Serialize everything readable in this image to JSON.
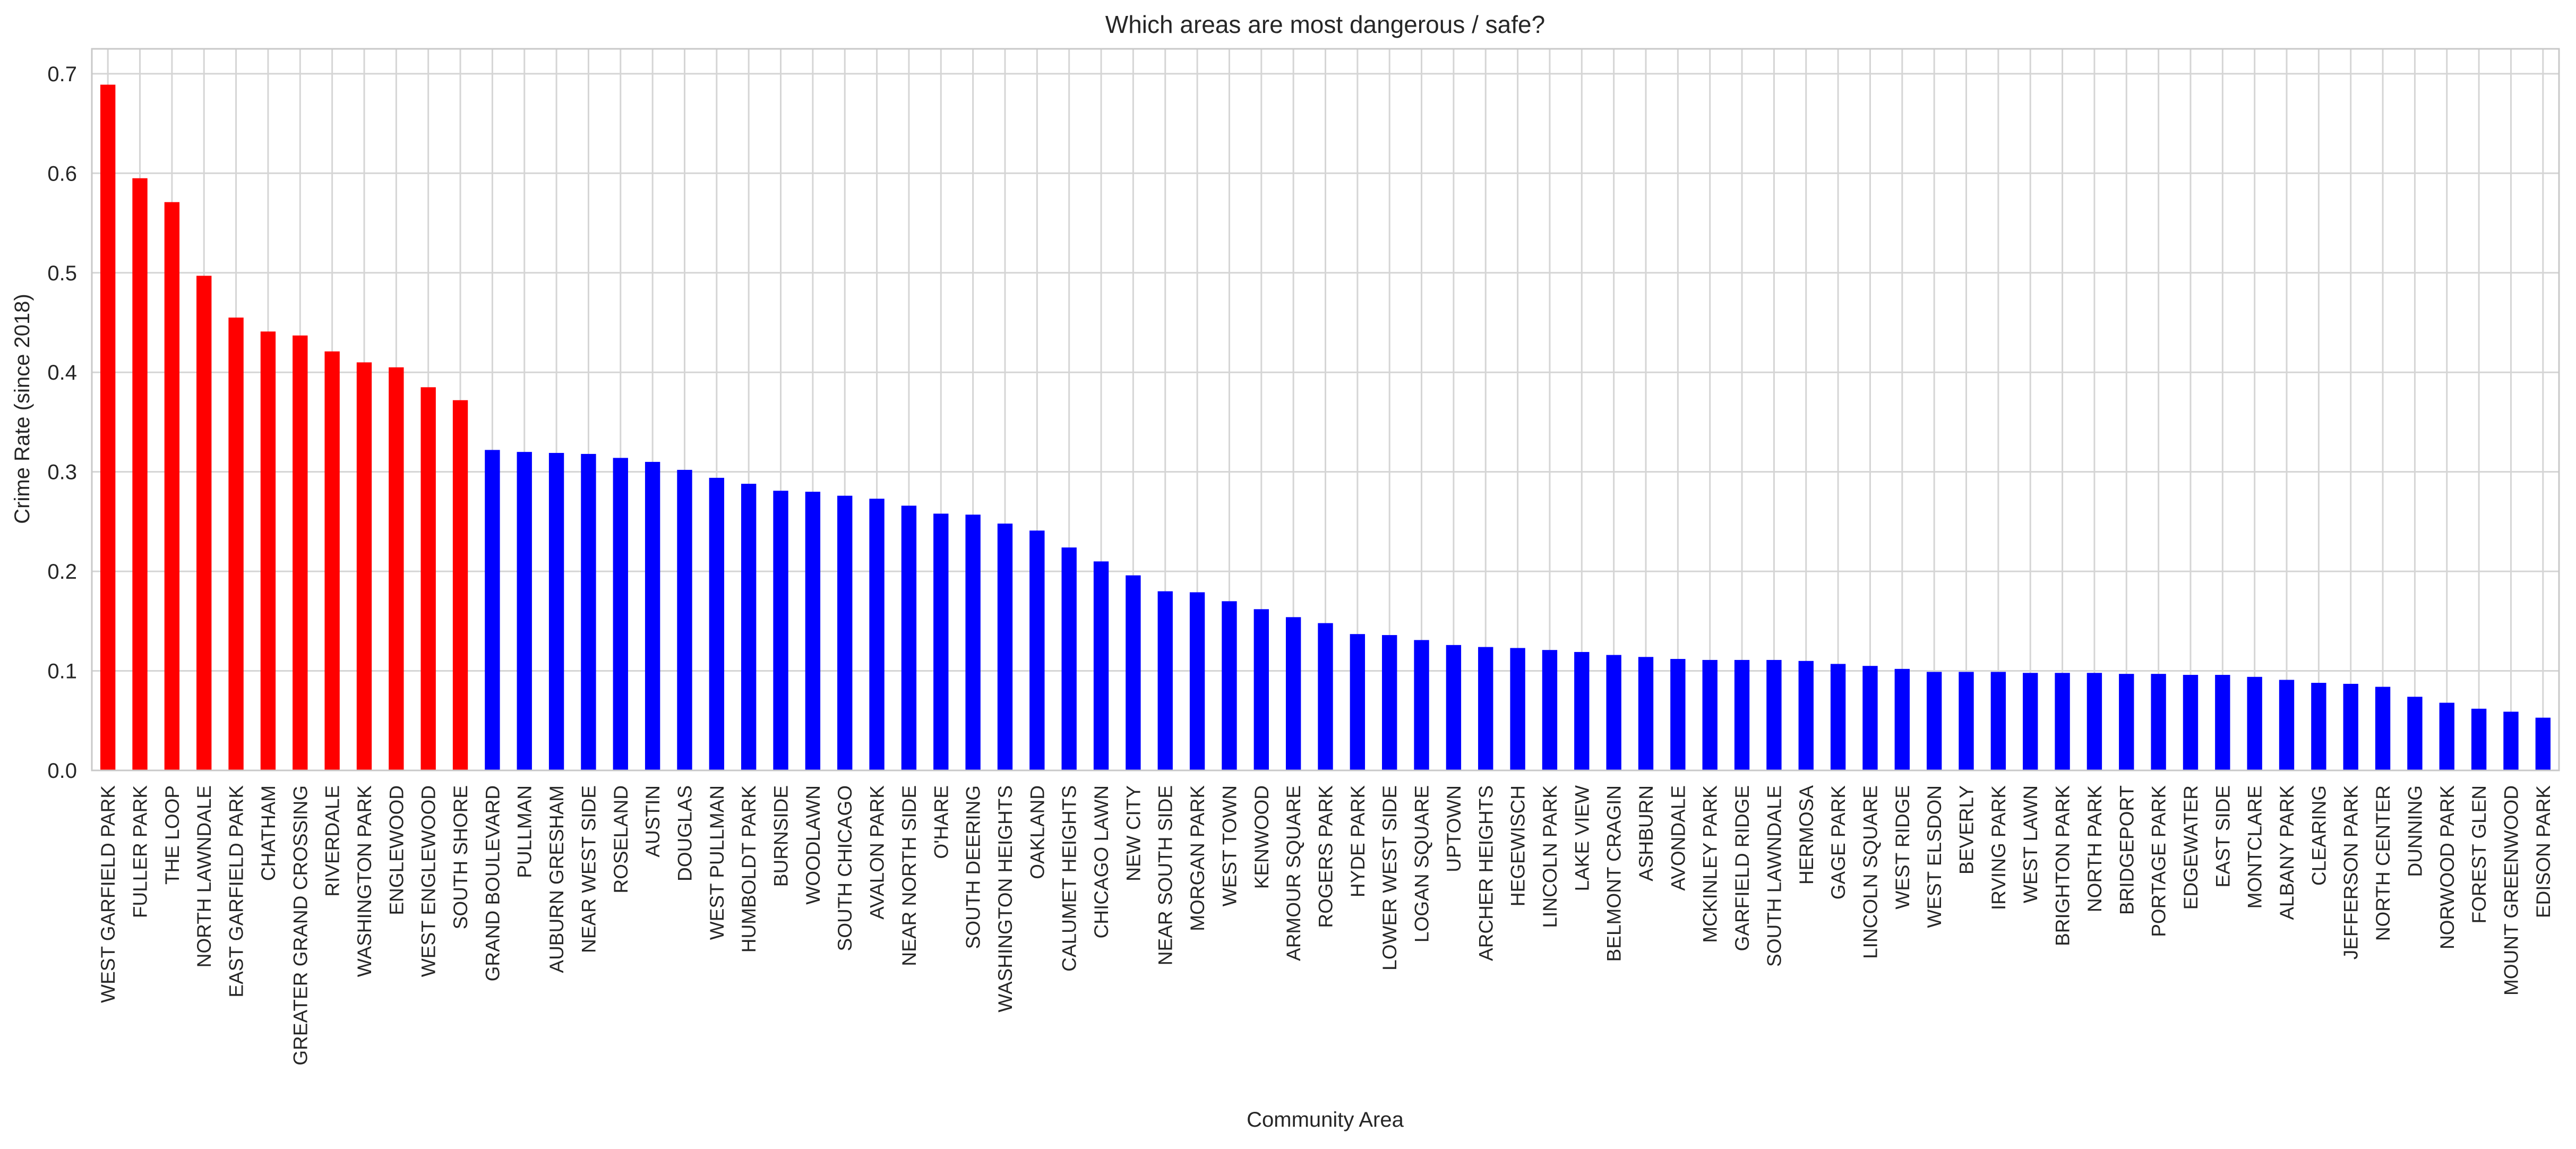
{
  "chart_data": {
    "type": "bar",
    "title": "Which areas are most dangerous / safe?",
    "xlabel": "Community Area",
    "ylabel": "Crime Rate (since 2018)",
    "ylim": [
      0,
      0.725
    ],
    "yticks": [
      0.0,
      0.1,
      0.2,
      0.3,
      0.4,
      0.5,
      0.6,
      0.7
    ],
    "ytick_labels": [
      "0.0",
      "0.1",
      "0.2",
      "0.3",
      "0.4",
      "0.5",
      "0.6",
      "0.7"
    ],
    "grid": true,
    "colors": {
      "highlight": "#ff0000",
      "default": "#0000ff",
      "grid": "#d5d5d5",
      "frame": "#c8c8c8"
    },
    "highlight_count": 12,
    "categories": [
      "WEST GARFIELD PARK",
      "FULLER PARK",
      "THE LOOP",
      "NORTH LAWNDALE",
      "EAST GARFIELD PARK",
      "CHATHAM",
      "GREATER GRAND CROSSING",
      "RIVERDALE",
      "WASHINGTON PARK",
      "ENGLEWOOD",
      "WEST ENGLEWOOD",
      "SOUTH SHORE",
      "GRAND BOULEVARD",
      "PULLMAN",
      "AUBURN GRESHAM",
      "NEAR WEST SIDE",
      "ROSELAND",
      "AUSTIN",
      "DOUGLAS",
      "WEST PULLMAN",
      "HUMBOLDT PARK",
      "BURNSIDE",
      "WOODLAWN",
      "SOUTH CHICAGO",
      "AVALON PARK",
      "NEAR NORTH SIDE",
      "O'HARE",
      "SOUTH DEERING",
      "WASHINGTON HEIGHTS",
      "OAKLAND",
      "CALUMET HEIGHTS",
      "CHICAGO LAWN",
      "NEW CITY",
      "NEAR SOUTH SIDE",
      "MORGAN PARK",
      "WEST TOWN",
      "KENWOOD",
      "ARMOUR SQUARE",
      "ROGERS PARK",
      "HYDE PARK",
      "LOWER WEST SIDE",
      "LOGAN SQUARE",
      "UPTOWN",
      "ARCHER HEIGHTS",
      "HEGEWISCH",
      "LINCOLN PARK",
      "LAKE VIEW",
      "BELMONT CRAGIN",
      "ASHBURN",
      "AVONDALE",
      "MCKINLEY PARK",
      "GARFIELD RIDGE",
      "SOUTH LAWNDALE",
      "HERMOSA",
      "GAGE PARK",
      "LINCOLN SQUARE",
      "WEST RIDGE",
      "WEST ELSDON",
      "BEVERLY",
      "IRVING PARK",
      "WEST LAWN",
      "BRIGHTON PARK",
      "NORTH PARK",
      "BRIDGEPORT",
      "PORTAGE PARK",
      "EDGEWATER",
      "EAST SIDE",
      "MONTCLARE",
      "ALBANY PARK",
      "CLEARING",
      "JEFFERSON PARK",
      "NORTH CENTER",
      "DUNNING",
      "NORWOOD PARK",
      "FOREST GLEN",
      "MOUNT GREENWOOD",
      "EDISON PARK"
    ],
    "values": [
      0.689,
      0.595,
      0.571,
      0.497,
      0.455,
      0.441,
      0.437,
      0.421,
      0.41,
      0.405,
      0.385,
      0.372,
      0.322,
      0.32,
      0.319,
      0.318,
      0.314,
      0.31,
      0.302,
      0.294,
      0.288,
      0.281,
      0.28,
      0.276,
      0.273,
      0.266,
      0.258,
      0.257,
      0.248,
      0.241,
      0.224,
      0.21,
      0.196,
      0.18,
      0.179,
      0.17,
      0.162,
      0.154,
      0.148,
      0.137,
      0.136,
      0.131,
      0.126,
      0.124,
      0.123,
      0.121,
      0.119,
      0.116,
      0.114,
      0.112,
      0.111,
      0.111,
      0.111,
      0.11,
      0.107,
      0.105,
      0.102,
      0.099,
      0.099,
      0.099,
      0.098,
      0.098,
      0.098,
      0.097,
      0.097,
      0.096,
      0.096,
      0.094,
      0.091,
      0.088,
      0.087,
      0.084,
      0.074,
      0.068,
      0.062,
      0.059,
      0.053
    ]
  }
}
